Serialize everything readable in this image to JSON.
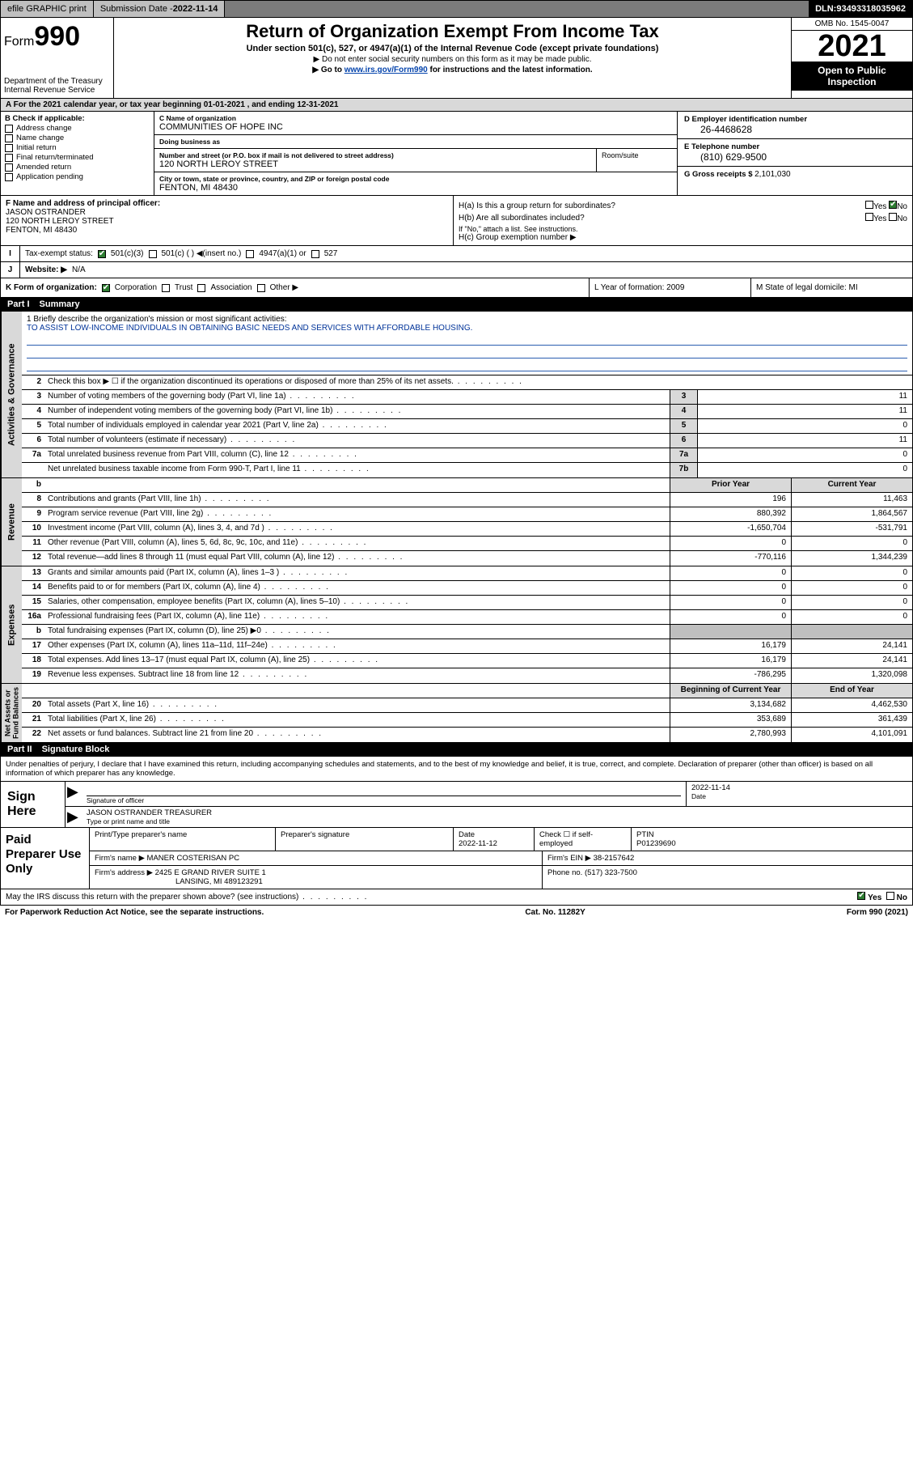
{
  "topbar": {
    "efile": "efile GRAPHIC print",
    "subdate_label": "Submission Date - ",
    "subdate": "2022-11-14",
    "dln_label": "DLN: ",
    "dln": "93493318035962"
  },
  "header": {
    "form_prefix": "Form",
    "form_num": "990",
    "dept": "Department of the Treasury",
    "irs": "Internal Revenue Service",
    "title": "Return of Organization Exempt From Income Tax",
    "subtitle": "Under section 501(c), 527, or 4947(a)(1) of the Internal Revenue Code (except private foundations)",
    "note1": "▶ Do not enter social security numbers on this form as it may be made public.",
    "note2_pre": "▶ Go to ",
    "note2_link": "www.irs.gov/Form990",
    "note2_post": " for instructions and the latest information.",
    "omb": "OMB No. 1545-0047",
    "year": "2021",
    "inspect1": "Open to Public",
    "inspect2": "Inspection"
  },
  "period": "A For the 2021 calendar year, or tax year beginning 01-01-2021   , and ending 12-31-2021",
  "boxB": {
    "title": "B Check if applicable:",
    "addr": "Address change",
    "name": "Name change",
    "init": "Initial return",
    "final": "Final return/terminated",
    "amend": "Amended return",
    "app": "Application pending"
  },
  "boxC": {
    "name_lab": "C Name of organization",
    "name": "COMMUNITIES OF HOPE INC",
    "dba_lab": "Doing business as",
    "dba": "",
    "addr_lab": "Number and street (or P.O. box if mail is not delivered to street address)",
    "addr": "120 NORTH LEROY STREET",
    "room_lab": "Room/suite",
    "city_lab": "City or town, state or province, country, and ZIP or foreign postal code",
    "city": "FENTON, MI  48430"
  },
  "boxD": {
    "lab": "D Employer identification number",
    "val": "26-4468628"
  },
  "boxE": {
    "lab": "E Telephone number",
    "val": "(810) 629-9500"
  },
  "boxG": {
    "lab": "G Gross receipts $ ",
    "val": "2,101,030"
  },
  "boxF": {
    "lab": "F  Name and address of principal officer:",
    "name": "JASON OSTRANDER",
    "addr1": "120 NORTH LEROY STREET",
    "addr2": "FENTON, MI  48430"
  },
  "boxH": {
    "a": "H(a)  Is this a group return for subordinates?",
    "a_yes": "Yes",
    "a_no": "No",
    "b": "H(b)  Are all subordinates included?",
    "b_note": "If \"No,\" attach a list. See instructions.",
    "c": "H(c)  Group exemption number ▶"
  },
  "rowI": {
    "lab": "I",
    "txt": "Tax-exempt status:",
    "o1": "501(c)(3)",
    "o2": "501(c) (  ) ◀(insert no.)",
    "o3": "4947(a)(1) or",
    "o4": "527"
  },
  "rowJ": {
    "lab": "J",
    "txt": "Website: ▶",
    "val": "N/A"
  },
  "rowK": {
    "txt": "K Form of organization:",
    "o1": "Corporation",
    "o2": "Trust",
    "o3": "Association",
    "o4": "Other ▶",
    "L": "L Year of formation: 2009",
    "M": "M State of legal domicile: MI"
  },
  "partI": {
    "pt": "Part I",
    "title": "Summary"
  },
  "mission": {
    "q": "1   Briefly describe the organization's mission or most significant activities:",
    "txt": "TO ASSIST LOW-INCOME INDIVIDUALS IN OBTAINING BASIC NEEDS AND SERVICES WITH AFFORDABLE HOUSING."
  },
  "summary_single": [
    {
      "n": "2",
      "d": "Check this box ▶ ☐  if the organization discontinued its operations or disposed of more than 25% of its net assets.",
      "ln": "",
      "v": ""
    },
    {
      "n": "3",
      "d": "Number of voting members of the governing body (Part VI, line 1a)",
      "ln": "3",
      "v": "11"
    },
    {
      "n": "4",
      "d": "Number of independent voting members of the governing body (Part VI, line 1b)",
      "ln": "4",
      "v": "11"
    },
    {
      "n": "5",
      "d": "Total number of individuals employed in calendar year 2021 (Part V, line 2a)",
      "ln": "5",
      "v": "0"
    },
    {
      "n": "6",
      "d": "Total number of volunteers (estimate if necessary)",
      "ln": "6",
      "v": "11"
    },
    {
      "n": "7a",
      "d": "Total unrelated business revenue from Part VIII, column (C), line 12",
      "ln": "7a",
      "v": "0"
    },
    {
      "n": "",
      "d": "Net unrelated business taxable income from Form 990-T, Part I, line 11",
      "ln": "7b",
      "v": "0"
    }
  ],
  "twohdr": {
    "b": "b",
    "py": "Prior Year",
    "cy": "Current Year"
  },
  "revenue": [
    {
      "n": "8",
      "d": "Contributions and grants (Part VIII, line 1h)",
      "v1": "196",
      "v2": "11,463"
    },
    {
      "n": "9",
      "d": "Program service revenue (Part VIII, line 2g)",
      "v1": "880,392",
      "v2": "1,864,567"
    },
    {
      "n": "10",
      "d": "Investment income (Part VIII, column (A), lines 3, 4, and 7d )",
      "v1": "-1,650,704",
      "v2": "-531,791"
    },
    {
      "n": "11",
      "d": "Other revenue (Part VIII, column (A), lines 5, 6d, 8c, 9c, 10c, and 11e)",
      "v1": "0",
      "v2": "0"
    },
    {
      "n": "12",
      "d": "Total revenue—add lines 8 through 11 (must equal Part VIII, column (A), line 12)",
      "v1": "-770,116",
      "v2": "1,344,239"
    }
  ],
  "expenses": [
    {
      "n": "13",
      "d": "Grants and similar amounts paid (Part IX, column (A), lines 1–3 )",
      "v1": "0",
      "v2": "0"
    },
    {
      "n": "14",
      "d": "Benefits paid to or for members (Part IX, column (A), line 4)",
      "v1": "0",
      "v2": "0"
    },
    {
      "n": "15",
      "d": "Salaries, other compensation, employee benefits (Part IX, column (A), lines 5–10)",
      "v1": "0",
      "v2": "0"
    },
    {
      "n": "16a",
      "d": "Professional fundraising fees (Part IX, column (A), line 11e)",
      "v1": "0",
      "v2": "0"
    },
    {
      "n": "b",
      "d": "Total fundraising expenses (Part IX, column (D), line 25) ▶0",
      "v1": "",
      "v2": "",
      "shade": true
    },
    {
      "n": "17",
      "d": "Other expenses (Part IX, column (A), lines 11a–11d, 11f–24e)",
      "v1": "16,179",
      "v2": "24,141"
    },
    {
      "n": "18",
      "d": "Total expenses. Add lines 13–17 (must equal Part IX, column (A), line 25)",
      "v1": "16,179",
      "v2": "24,141"
    },
    {
      "n": "19",
      "d": "Revenue less expenses. Subtract line 18 from line 12",
      "v1": "-786,295",
      "v2": "1,320,098"
    }
  ],
  "nahdr": {
    "py": "Beginning of Current Year",
    "cy": "End of Year"
  },
  "netassets": [
    {
      "n": "20",
      "d": "Total assets (Part X, line 16)",
      "v1": "3,134,682",
      "v2": "4,462,530"
    },
    {
      "n": "21",
      "d": "Total liabilities (Part X, line 26)",
      "v1": "353,689",
      "v2": "361,439"
    },
    {
      "n": "22",
      "d": "Net assets or fund balances. Subtract line 21 from line 20",
      "v1": "2,780,993",
      "v2": "4,101,091"
    }
  ],
  "vtabs": {
    "ag": "Activities & Governance",
    "rev": "Revenue",
    "exp": "Expenses",
    "na": "Net Assets or\nFund Balances"
  },
  "partII": {
    "pt": "Part II",
    "title": "Signature Block"
  },
  "penalty": "Under penalties of perjury, I declare that I have examined this return, including accompanying schedules and statements, and to the best of my knowledge and belief, it is true, correct, and complete. Declaration of preparer (other than officer) is based on all information of which preparer has any knowledge.",
  "sign": {
    "here": "Sign Here",
    "sig_lab": "Signature of officer",
    "date": "2022-11-14",
    "date_lab": "Date",
    "name": "JASON OSTRANDER  TREASURER",
    "name_lab": "Type or print name and title"
  },
  "prep": {
    "title": "Paid Preparer Use Only",
    "h1": "Print/Type preparer's name",
    "h2": "Preparer's signature",
    "h3": "Date",
    "h3v": "2022-11-12",
    "h4": "Check ☐ if self-employed",
    "h5": "PTIN",
    "h5v": "P01239690",
    "firm_lab": "Firm's name    ▶",
    "firm": "MANER COSTERISAN PC",
    "ein_lab": "Firm's EIN ▶",
    "ein": "38-2157642",
    "addr_lab": "Firm's address ▶",
    "addr1": "2425 E GRAND RIVER SUITE 1",
    "addr2": "LANSING, MI  489123291",
    "phone_lab": "Phone no. ",
    "phone": "(517) 323-7500"
  },
  "footer": {
    "q": "May the IRS discuss this return with the preparer shown above? (see instructions)",
    "yes": "Yes",
    "no": "No",
    "pra": "For Paperwork Reduction Act Notice, see the separate instructions.",
    "cat": "Cat. No. 11282Y",
    "form": "Form 990 (2021)"
  }
}
